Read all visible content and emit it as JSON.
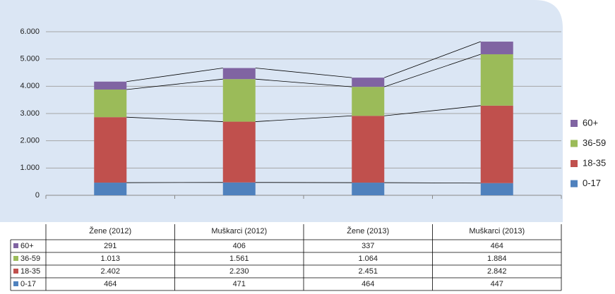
{
  "chart_data": {
    "type": "stacked_bar",
    "categories": [
      "Žene (2012)",
      "Muškarci (2012)",
      "Žene (2013)",
      "Muškarci (2013)"
    ],
    "series": [
      {
        "name": "0-17",
        "color": "#4f81bd",
        "values": [
          464,
          471,
          464,
          447
        ],
        "value_labels": [
          "464",
          "471",
          "464",
          "447"
        ]
      },
      {
        "name": "18-35",
        "color": "#c0504d",
        "values": [
          2402,
          2230,
          2451,
          2842
        ],
        "value_labels": [
          "2.402",
          "2.230",
          "2.451",
          "2.842"
        ]
      },
      {
        "name": "36-59",
        "color": "#9bbb59",
        "values": [
          1013,
          1561,
          1064,
          1884
        ],
        "value_labels": [
          "1.013",
          "1.561",
          "1.064",
          "1.884"
        ]
      },
      {
        "name": "60+",
        "color": "#8064a2",
        "values": [
          291,
          406,
          337,
          464
        ],
        "value_labels": [
          "291",
          "406",
          "337",
          "464"
        ]
      }
    ],
    "ylim": [
      0,
      6000
    ],
    "yticks": [
      0,
      {
        "value": 1000,
        "label": "1.000"
      },
      {
        "value": 2000,
        "label": "2.000"
      },
      {
        "value": 3000,
        "label": "3.000"
      },
      {
        "value": 4000,
        "label": "4.000"
      },
      {
        "value": 5000,
        "label": "5.000"
      },
      {
        "value": 6000,
        "label": "6.000"
      }
    ],
    "grid": true,
    "legend": "right",
    "data_table": true
  }
}
